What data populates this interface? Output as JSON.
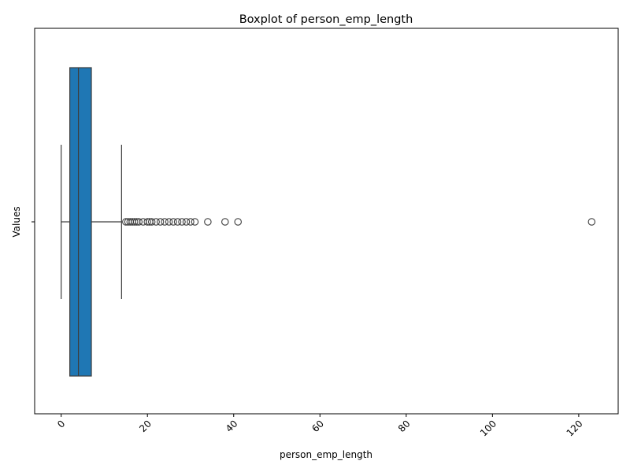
{
  "chart_data": {
    "type": "boxplot",
    "title": "Boxplot of person_emp_length",
    "xlabel": "person_emp_length",
    "ylabel": "Values",
    "xlim": [
      -6.15,
      129.15
    ],
    "xticks": [
      0,
      20,
      40,
      60,
      80,
      100,
      120
    ],
    "xtick_rotation": 45,
    "orientation": "horizontal",
    "grid": false,
    "box": {
      "whisker_low": 0,
      "q1": 2,
      "median": 4,
      "q3": 7,
      "whisker_high": 14
    },
    "outliers": [
      15,
      15.5,
      16,
      16.5,
      17,
      17.5,
      18,
      19,
      20,
      20.5,
      21,
      22,
      23,
      24,
      25,
      26,
      27,
      28,
      29,
      30,
      31,
      34,
      38,
      41,
      123
    ],
    "colors": {
      "box_fill": "#1f77b4",
      "line": "#3d3d3d"
    }
  }
}
